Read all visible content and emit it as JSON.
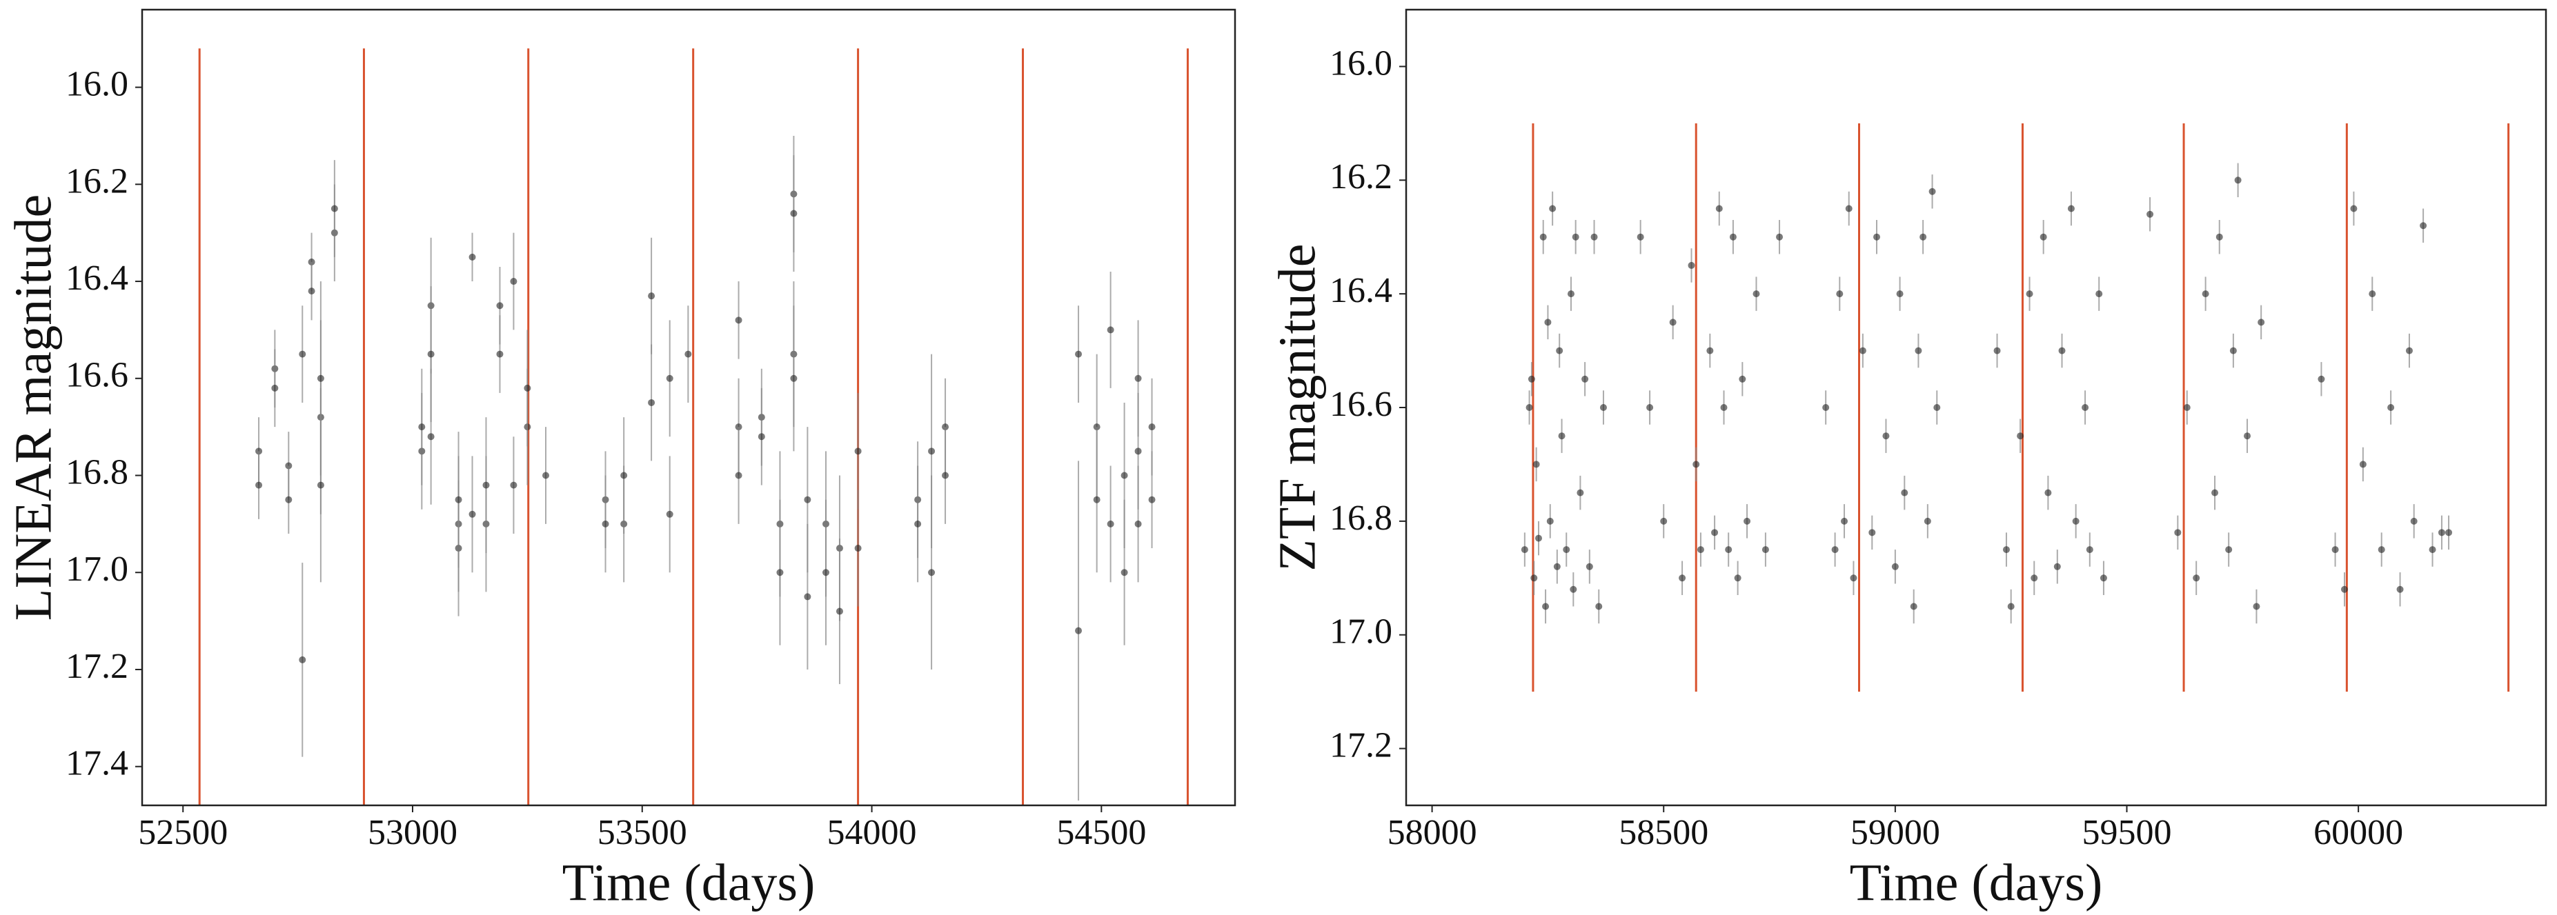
{
  "chart_data": [
    {
      "type": "scatter",
      "xlabel": "Time (days)",
      "ylabel": "LINEAR magnitude",
      "xlim": [
        52411,
        54791
      ],
      "ylim": [
        15.84,
        17.48
      ],
      "y_inverted": true,
      "xticks": [
        52500,
        53000,
        53500,
        54000,
        54500
      ],
      "yticks": [
        {
          "value": 16,
          "label": "16.0"
        },
        16.2,
        16.4,
        16.6,
        16.8,
        {
          "value": 17,
          "label": "17.0"
        },
        17.2,
        17.4
      ],
      "grid": false,
      "color": "#222222",
      "error_color": "#888888",
      "vline_color": "#d9532f",
      "vlines": [
        52536,
        52894,
        53252,
        53611,
        53970,
        54329,
        54688
      ],
      "vline_range": [
        15.92,
        17.48
      ],
      "x": [
        52665,
        52665,
        52700,
        52700,
        52730,
        52730,
        52760,
        52760,
        52780,
        52780,
        52800,
        52800,
        52800,
        52830,
        52830,
        53020,
        53020,
        53040,
        53040,
        53040,
        53100,
        53100,
        53100,
        53130,
        53130,
        53160,
        53160,
        53190,
        53190,
        53220,
        53220,
        53250,
        53250,
        53290,
        53420,
        53420,
        53460,
        53460,
        53520,
        53520,
        53560,
        53560,
        53600,
        53710,
        53710,
        53710,
        53760,
        53760,
        53800,
        53800,
        53830,
        53830,
        53830,
        53830,
        53860,
        53860,
        53900,
        53900,
        53930,
        53930,
        53970,
        53970,
        54100,
        54100,
        54130,
        54130,
        54160,
        54160,
        54450,
        54450,
        54490,
        54490,
        54520,
        54520,
        54550,
        54550,
        54580,
        54580,
        54580,
        54610,
        54610
      ],
      "values": [
        16.75,
        16.82,
        16.58,
        16.62,
        16.78,
        16.85,
        16.55,
        17.18,
        16.36,
        16.42,
        16.68,
        16.82,
        16.6,
        16.3,
        16.25,
        16.75,
        16.7,
        16.45,
        16.55,
        16.72,
        16.9,
        16.95,
        16.85,
        16.35,
        16.88,
        16.9,
        16.82,
        16.45,
        16.55,
        16.4,
        16.82,
        16.7,
        16.62,
        16.8,
        16.85,
        16.9,
        16.9,
        16.8,
        16.43,
        16.65,
        16.6,
        16.88,
        16.55,
        16.48,
        16.7,
        16.8,
        16.68,
        16.72,
        16.9,
        17.0,
        16.22,
        16.26,
        16.55,
        16.6,
        16.85,
        17.05,
        16.9,
        17.0,
        16.95,
        17.08,
        16.75,
        16.95,
        16.85,
        16.9,
        16.75,
        17.0,
        16.7,
        16.8,
        16.55,
        17.12,
        16.7,
        16.85,
        16.5,
        16.9,
        16.8,
        17.0,
        16.6,
        16.75,
        16.9,
        16.7,
        16.85
      ],
      "errors": [
        0.07,
        0.07,
        0.08,
        0.08,
        0.07,
        0.07,
        0.1,
        0.2,
        0.06,
        0.06,
        0.2,
        0.2,
        0.2,
        0.1,
        0.1,
        0.12,
        0.12,
        0.14,
        0.14,
        0.14,
        0.14,
        0.14,
        0.14,
        0.05,
        0.12,
        0.14,
        0.14,
        0.08,
        0.08,
        0.1,
        0.1,
        0.12,
        0.12,
        0.1,
        0.1,
        0.1,
        0.12,
        0.12,
        0.12,
        0.12,
        0.12,
        0.12,
        0.1,
        0.08,
        0.1,
        0.1,
        0.1,
        0.1,
        0.15,
        0.15,
        0.12,
        0.12,
        0.15,
        0.15,
        0.15,
        0.15,
        0.15,
        0.15,
        0.15,
        0.15,
        0.12,
        0.12,
        0.12,
        0.12,
        0.2,
        0.2,
        0.1,
        0.1,
        0.1,
        0.35,
        0.15,
        0.15,
        0.12,
        0.12,
        0.15,
        0.15,
        0.12,
        0.12,
        0.12,
        0.1,
        0.1
      ]
    },
    {
      "type": "scatter",
      "xlabel": "Time (days)",
      "ylabel": "ZTF magnitude",
      "xlim": [
        57944,
        60405
      ],
      "ylim": [
        15.9,
        17.3
      ],
      "y_inverted": true,
      "xticks": [
        58000,
        58500,
        59000,
        59500,
        60000
      ],
      "yticks": [
        {
          "value": 16,
          "label": "16.0"
        },
        16.2,
        16.4,
        16.6,
        16.8,
        {
          "value": 17,
          "label": "17.0"
        },
        17.2
      ],
      "grid": false,
      "color": "#222222",
      "error_color": "#888888",
      "vline_color": "#d9532f",
      "vlines": [
        58218,
        58570,
        58922,
        59275,
        59623,
        59975,
        60324
      ],
      "vline_range": [
        16.1,
        17.1
      ],
      "x": [
        58200,
        58210,
        58215,
        58220,
        58225,
        58230,
        58240,
        58245,
        58250,
        58255,
        58260,
        58270,
        58275,
        58280,
        58290,
        58300,
        58305,
        58310,
        58320,
        58330,
        58340,
        58350,
        58360,
        58370,
        58450,
        58470,
        58500,
        58520,
        58540,
        58560,
        58570,
        58580,
        58600,
        58610,
        58620,
        58630,
        58640,
        58650,
        58660,
        58670,
        58680,
        58700,
        58720,
        58750,
        58850,
        58870,
        58880,
        58890,
        58900,
        58910,
        58930,
        58950,
        58960,
        58980,
        59000,
        59010,
        59020,
        59040,
        59050,
        59060,
        59070,
        59080,
        59090,
        59220,
        59240,
        59250,
        59270,
        59290,
        59300,
        59320,
        59330,
        59350,
        59360,
        59380,
        59390,
        59410,
        59420,
        59440,
        59450,
        59550,
        59610,
        59630,
        59650,
        59670,
        59690,
        59700,
        59720,
        59730,
        59740,
        59760,
        59780,
        59790,
        59920,
        59950,
        59970,
        59990,
        60010,
        60030,
        60050,
        60070,
        60090,
        60110,
        60120,
        60140,
        60160,
        60180,
        60195
      ],
      "values": [
        16.85,
        16.6,
        16.55,
        16.9,
        16.7,
        16.83,
        16.3,
        16.95,
        16.45,
        16.8,
        16.25,
        16.88,
        16.5,
        16.65,
        16.85,
        16.4,
        16.92,
        16.3,
        16.75,
        16.55,
        16.88,
        16.3,
        16.95,
        16.6,
        16.3,
        16.6,
        16.8,
        16.45,
        16.9,
        16.35,
        16.7,
        16.85,
        16.5,
        16.82,
        16.25,
        16.6,
        16.85,
        16.3,
        16.9,
        16.55,
        16.8,
        16.4,
        16.85,
        16.3,
        16.6,
        16.85,
        16.4,
        16.8,
        16.25,
        16.9,
        16.5,
        16.82,
        16.3,
        16.65,
        16.88,
        16.4,
        16.75,
        16.95,
        16.5,
        16.3,
        16.8,
        16.22,
        16.6,
        16.5,
        16.85,
        16.95,
        16.65,
        16.4,
        16.9,
        16.3,
        16.75,
        16.88,
        16.5,
        16.25,
        16.8,
        16.6,
        16.85,
        16.4,
        16.9,
        16.26,
        16.82,
        16.6,
        16.9,
        16.4,
        16.75,
        16.3,
        16.85,
        16.5,
        16.2,
        16.65,
        16.95,
        16.45,
        16.55,
        16.85,
        16.92,
        16.25,
        16.7,
        16.4,
        16.85,
        16.6,
        16.92,
        16.5,
        16.8,
        16.28,
        16.85,
        16.82,
        16.82
      ],
      "errors": [
        0.03,
        0.03,
        0.03,
        0.03,
        0.03,
        0.03,
        0.03,
        0.03,
        0.03,
        0.03,
        0.03,
        0.03,
        0.03,
        0.03,
        0.03,
        0.03,
        0.03,
        0.03,
        0.03,
        0.03,
        0.03,
        0.03,
        0.03,
        0.03,
        0.03,
        0.03,
        0.03,
        0.03,
        0.03,
        0.03,
        0.03,
        0.03,
        0.03,
        0.03,
        0.03,
        0.03,
        0.03,
        0.03,
        0.03,
        0.03,
        0.03,
        0.03,
        0.03,
        0.03,
        0.03,
        0.03,
        0.03,
        0.03,
        0.03,
        0.03,
        0.03,
        0.03,
        0.03,
        0.03,
        0.03,
        0.03,
        0.03,
        0.03,
        0.03,
        0.03,
        0.03,
        0.03,
        0.03,
        0.03,
        0.03,
        0.03,
        0.03,
        0.03,
        0.03,
        0.03,
        0.03,
        0.03,
        0.03,
        0.03,
        0.03,
        0.03,
        0.03,
        0.03,
        0.03,
        0.03,
        0.03,
        0.03,
        0.03,
        0.03,
        0.03,
        0.03,
        0.03,
        0.03,
        0.03,
        0.03,
        0.03,
        0.03,
        0.03,
        0.03,
        0.03,
        0.03,
        0.03,
        0.03,
        0.03,
        0.03,
        0.03,
        0.03,
        0.03,
        0.03,
        0.03,
        0.03,
        0.03
      ]
    }
  ]
}
